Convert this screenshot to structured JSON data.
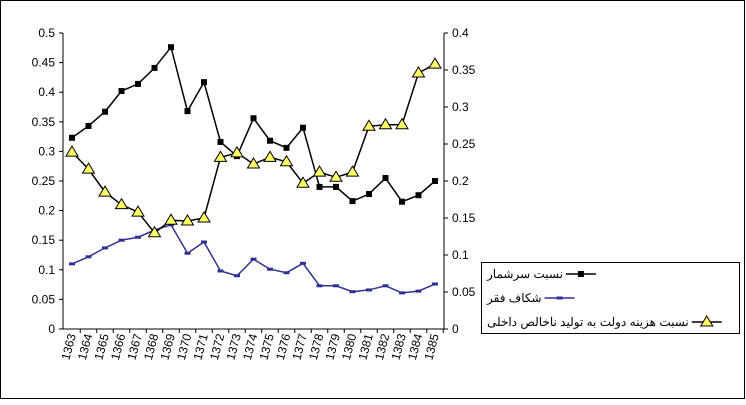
{
  "chart_data": {
    "type": "line",
    "categories": [
      "1363",
      "1364",
      "1365",
      "1366",
      "1367",
      "1368",
      "1369",
      "1370",
      "1371",
      "1372",
      "1373",
      "1374",
      "1375",
      "1376",
      "1377",
      "1378",
      "1379",
      "1380",
      "1381",
      "1382",
      "1383",
      "1384",
      "1385"
    ],
    "series": [
      {
        "name": "نسبت سرشمار",
        "color": "#000000",
        "marker": "square",
        "values": [
          0.323,
          0.343,
          0.367,
          0.402,
          0.414,
          0.441,
          0.476,
          0.368,
          0.417,
          0.316,
          0.292,
          0.356,
          0.318,
          0.306,
          0.34,
          0.24,
          0.24,
          0.216,
          0.228,
          0.255,
          0.215,
          0.226,
          0.25
        ]
      },
      {
        "name": "شکاف فقر",
        "color": "#2e3192",
        "marker": "dash",
        "values": [
          0.11,
          0.122,
          0.137,
          0.15,
          0.155,
          0.167,
          0.176,
          0.128,
          0.147,
          0.098,
          0.09,
          0.118,
          0.101,
          0.095,
          0.111,
          0.073,
          0.073,
          0.063,
          0.066,
          0.073,
          0.061,
          0.064,
          0.076
        ]
      },
      {
        "name": "نسبت هزینه دولت به تولید ناخالص داخلی",
        "color": "#000000",
        "marker": "triangle",
        "marker_fill": "#ffff66",
        "axis": "y2",
        "values": [
          0.239,
          0.216,
          0.185,
          0.168,
          0.158,
          0.13,
          0.147,
          0.146,
          0.15,
          0.232,
          0.238,
          0.223,
          0.232,
          0.226,
          0.197,
          0.212,
          0.205,
          0.212,
          0.274,
          0.276,
          0.276,
          0.346,
          0.358
        ]
      }
    ],
    "ylim": [
      0,
      0.5
    ],
    "yticks": [
      0,
      0.05,
      0.1,
      0.15,
      0.2,
      0.25,
      0.3,
      0.35,
      0.4,
      0.45,
      0.5
    ],
    "y2lim": [
      0,
      0.4
    ],
    "y2ticks": [
      0,
      0.05,
      0.1,
      0.15,
      0.2,
      0.25,
      0.3,
      0.35,
      0.4
    ],
    "grid": false,
    "legend": "right"
  }
}
